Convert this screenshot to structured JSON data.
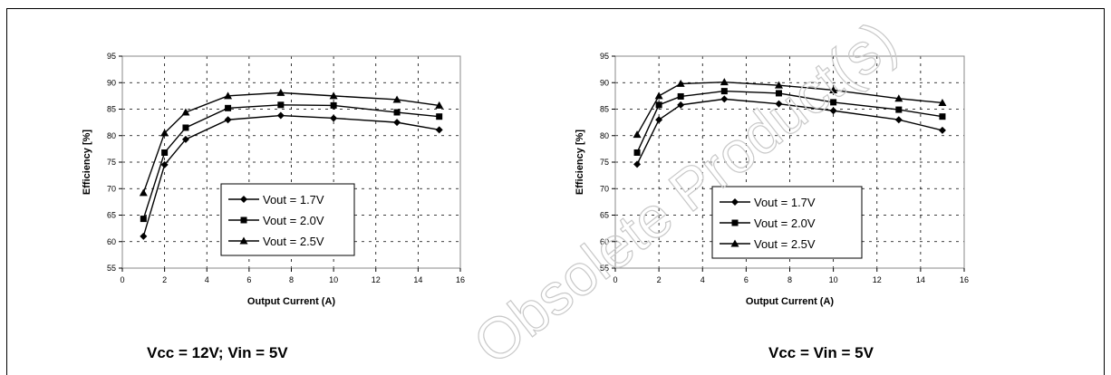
{
  "chart_data": [
    {
      "type": "line",
      "xlabel": "Output Current (A)",
      "ylabel": "Efficiency [%]",
      "xlim": [
        0,
        16
      ],
      "ylim": [
        55,
        95
      ],
      "xticks": [
        0,
        2,
        4,
        6,
        8,
        10,
        12,
        14,
        16
      ],
      "yticks": [
        55,
        60,
        65,
        70,
        75,
        80,
        85,
        90,
        95
      ],
      "grid": true,
      "legend_position": "center-right",
      "x": [
        1,
        2,
        3,
        5,
        7.5,
        10,
        13,
        15
      ],
      "series": [
        {
          "name": "Vout = 1.7V",
          "marker": "diamond",
          "values": [
            61.0,
            74.5,
            79.3,
            83.0,
            83.8,
            83.3,
            82.5,
            81.1
          ]
        },
        {
          "name": "Vout = 2.0V",
          "marker": "square",
          "values": [
            64.3,
            76.8,
            81.5,
            85.2,
            85.8,
            85.7,
            84.4,
            83.6
          ]
        },
        {
          "name": "Vout = 2.5V",
          "marker": "triangle",
          "values": [
            69.2,
            80.5,
            84.4,
            87.5,
            88.1,
            87.5,
            86.8,
            85.7
          ]
        }
      ],
      "caption": "Vcc = 12V; Vin = 5V"
    },
    {
      "type": "line",
      "xlabel": "Output Current (A)",
      "ylabel": "Efficiency [%]",
      "xlim": [
        0,
        16
      ],
      "ylim": [
        55,
        95
      ],
      "xticks": [
        0,
        2,
        4,
        6,
        8,
        10,
        12,
        14,
        16
      ],
      "yticks": [
        55,
        60,
        65,
        70,
        75,
        80,
        85,
        90,
        95
      ],
      "grid": true,
      "legend_position": "center",
      "x": [
        1,
        2,
        3,
        5,
        7.5,
        10,
        13,
        15
      ],
      "series": [
        {
          "name": "Vout = 1.7V",
          "marker": "diamond",
          "values": [
            74.6,
            83.0,
            85.8,
            86.9,
            86.0,
            84.7,
            83.0,
            81.0
          ]
        },
        {
          "name": "Vout = 2.0V",
          "marker": "square",
          "values": [
            76.8,
            85.8,
            87.4,
            88.4,
            88.0,
            86.3,
            84.9,
            83.6
          ]
        },
        {
          "name": "Vout = 2.5V",
          "marker": "triangle",
          "values": [
            80.2,
            87.5,
            89.8,
            90.1,
            89.5,
            88.6,
            87.0,
            86.2
          ]
        }
      ],
      "caption": "Vcc = Vin = 5V"
    }
  ],
  "watermark": "Obsolete Product(s)"
}
